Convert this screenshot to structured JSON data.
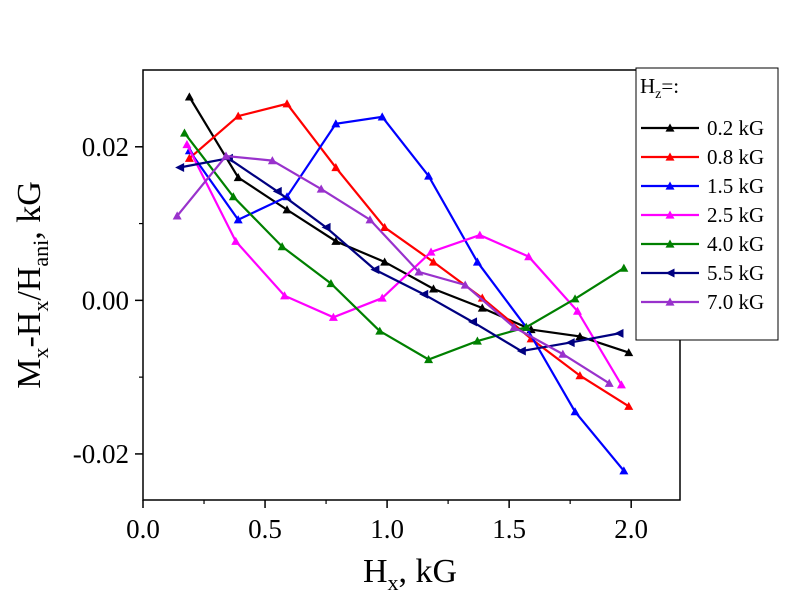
{
  "chart_data": {
    "type": "line",
    "xlabel": {
      "main": "H",
      "sub": "x",
      "suffix": ", kG"
    },
    "ylabel": {
      "parts": [
        {
          "t": "M",
          "sub": false
        },
        {
          "t": "x",
          "sub": true
        },
        {
          "t": "-H",
          "sub": false
        },
        {
          "t": "x",
          "sub": true
        },
        {
          "t": "/H",
          "sub": false
        },
        {
          "t": "ani",
          "sub": true
        },
        {
          "t": ", kG",
          "sub": false
        }
      ]
    },
    "xlim": [
      0.0,
      2.2
    ],
    "ylim": [
      -0.026,
      0.03
    ],
    "xticks": [
      0.0,
      0.5,
      1.0,
      1.5,
      2.0
    ],
    "xtick_labels": [
      "0.0",
      "0.5",
      "1.0",
      "1.5",
      "2.0"
    ],
    "yticks": [
      -0.02,
      0.0,
      0.02
    ],
    "ytick_labels": [
      "-0.02",
      "0.00",
      "0.02"
    ],
    "legend": {
      "title_main": "H",
      "title_sub": "z",
      "title_suffix": "=:",
      "placement": "right-outside-top"
    },
    "series": [
      {
        "name": "0.2 kG",
        "color": "#000000",
        "marker": "triangle-up",
        "x": [
          0.19,
          0.39,
          0.59,
          0.79,
          0.99,
          1.19,
          1.39,
          1.59,
          1.79,
          1.99
        ],
        "y": [
          0.0265,
          0.016,
          0.0118,
          0.0077,
          0.005,
          0.0015,
          -0.001,
          -0.0038,
          -0.0047,
          -0.0068
        ]
      },
      {
        "name": "0.8 kG",
        "color": "#ff0000",
        "marker": "triangle-up",
        "x": [
          0.19,
          0.39,
          0.59,
          0.79,
          0.99,
          1.19,
          1.39,
          1.59,
          1.79,
          1.99
        ],
        "y": [
          0.0185,
          0.024,
          0.0256,
          0.0173,
          0.0095,
          0.005,
          0.0003,
          -0.005,
          -0.0098,
          -0.0138
        ]
      },
      {
        "name": "1.5 kG",
        "color": "#0000ff",
        "marker": "triangle-up",
        "x": [
          0.19,
          0.39,
          0.59,
          0.79,
          0.98,
          1.17,
          1.37,
          1.57,
          1.77,
          1.97
        ],
        "y": [
          0.0195,
          0.0105,
          0.0135,
          0.023,
          0.0239,
          0.0162,
          0.005,
          -0.0035,
          -0.0145,
          -0.0222
        ]
      },
      {
        "name": "2.5 kG",
        "color": "#ff00ff",
        "marker": "triangle-up",
        "x": [
          0.18,
          0.38,
          0.58,
          0.78,
          0.98,
          1.18,
          1.38,
          1.58,
          1.78,
          1.96
        ],
        "y": [
          0.0203,
          0.0077,
          0.0006,
          -0.0022,
          0.0003,
          0.0063,
          0.0085,
          0.0057,
          -0.0014,
          -0.011
        ]
      },
      {
        "name": "4.0 kG",
        "color": "#008000",
        "marker": "triangle-up",
        "x": [
          0.17,
          0.37,
          0.57,
          0.77,
          0.97,
          1.17,
          1.37,
          1.57,
          1.77,
          1.97
        ],
        "y": [
          0.0218,
          0.0135,
          0.007,
          0.0022,
          -0.004,
          -0.0077,
          -0.0053,
          -0.0035,
          0.0002,
          0.0042
        ]
      },
      {
        "name": "5.5 kG",
        "color": "#000080",
        "marker": "triangle-left",
        "x": [
          0.15,
          0.35,
          0.55,
          0.75,
          0.95,
          1.15,
          1.35,
          1.55,
          1.75,
          1.95
        ],
        "y": [
          0.0173,
          0.0185,
          0.0142,
          0.0095,
          0.004,
          0.0008,
          -0.0028,
          -0.0066,
          -0.0055,
          -0.0043
        ]
      },
      {
        "name": "7.0 kG",
        "color": "#9932cc",
        "marker": "triangle-up",
        "x": [
          0.14,
          0.34,
          0.53,
          0.73,
          0.93,
          1.13,
          1.32,
          1.52,
          1.72,
          1.91
        ],
        "y": [
          0.011,
          0.0188,
          0.0182,
          0.0145,
          0.0105,
          0.0037,
          0.002,
          -0.0035,
          -0.007,
          -0.0108
        ]
      }
    ]
  }
}
